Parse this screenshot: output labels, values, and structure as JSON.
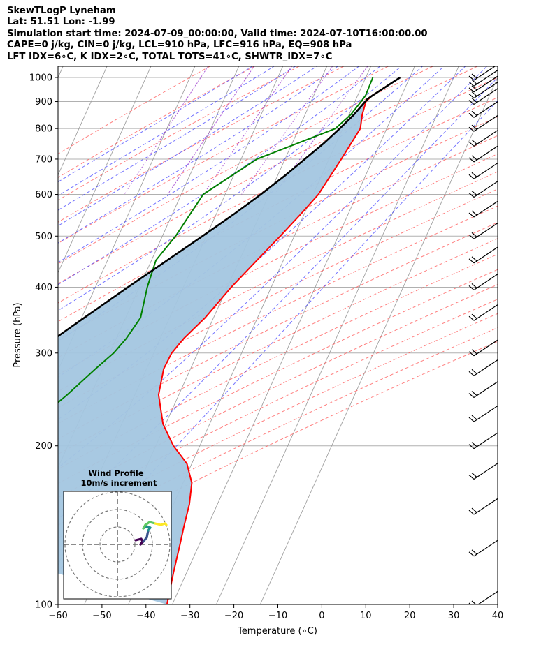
{
  "header": {
    "line1": "SkewTLogP Lyneham",
    "line2": "Lat: 51.51   Lon: -1.99",
    "line3": "Simulation start time: 2024-07-09_00:00:00, Valid time: 2024-07-10T16:00:00.00",
    "line4": "CAPE=0 j/kg, CIN=0 j/kg, LCL=910 hPa, LFC=916 hPa, EQ=908 hPa",
    "line5": "LFT IDX=6∘C, K IDX=2∘C, TOTAL TOTS=41∘C, SHWTR_IDX=7∘C"
  },
  "chart_data": {
    "type": "line",
    "xlabel": "Temperature (∘C)",
    "ylabel": "Pressure (hPa)",
    "xlim": [
      -60,
      40
    ],
    "ylim": [
      1050,
      100
    ],
    "y_scale": "log",
    "skew": true,
    "grid": true,
    "x_ticks": [
      -60,
      -50,
      -40,
      -30,
      -20,
      -10,
      0,
      10,
      20,
      30,
      40
    ],
    "y_ticks": [
      1000,
      900,
      800,
      700,
      600,
      500,
      400,
      300,
      200,
      100
    ],
    "colors": {
      "temperature": "#ff0000",
      "dewpoint": "#008000",
      "parcel": "#000000",
      "cape_fill": "#a3c6e0",
      "isotherms": "#a0a0a0",
      "dry_adiabats": "#ff5555",
      "moist_adiabats": "#4444ff",
      "mixing_ratio": "#9933cc"
    },
    "series": [
      {
        "key": "temperature",
        "x": [
          17.8,
          13.3,
          12.5,
          13.0,
          14.0,
          12.8,
          11.2,
          9.2,
          6.8,
          4.0,
          0.9,
          -1.9,
          -4.6,
          -5.9,
          -6.1,
          -4.6,
          -0.6,
          4.0,
          8.9,
          12.0,
          13.6,
          14.7,
          15.6,
          17.0,
          18.8
        ],
        "y": [
          1000,
          925,
          900,
          850,
          800,
          700,
          600,
          550,
          500,
          450,
          400,
          350,
          320,
          300,
          280,
          250,
          220,
          200,
          185,
          170,
          155,
          140,
          130,
          115,
          100
        ]
      },
      {
        "key": "dewpoint",
        "x": [
          11.6,
          11.8,
          11.4,
          10.4,
          8.3,
          -6.4,
          -15.0,
          -17.0,
          -19.0,
          -18.2,
          -16.6,
          -17.7,
          -19.1,
          -21.6,
          -25.4,
          -29.5,
          -34.8,
          -37.7,
          -42.5,
          -47.2,
          -53.9,
          -59.0
        ],
        "y": [
          1000,
          925,
          900,
          850,
          800,
          700,
          600,
          500,
          450,
          400,
          350,
          320,
          300,
          280,
          250,
          225,
          205,
          187,
          170,
          150,
          120,
          100
        ]
      },
      {
        "key": "parcel",
        "x": [
          17.8,
          13.4,
          12.6,
          11.1,
          9.3,
          7.2,
          4.5,
          1.6,
          -1.9,
          -6.0,
          -10.9,
          -16.4,
          -22.6,
          -29.4,
          -37.2,
          -45.6,
          -54.6,
          -65.0
        ],
        "y": [
          1000,
          925,
          910,
          850,
          800,
          750,
          700,
          650,
          600,
          550,
          500,
          450,
          400,
          350,
          300,
          250,
          200,
          150
        ]
      }
    ],
    "wind_barbs": [
      {
        "pressure": 100,
        "kind": "flag_feathers"
      },
      {
        "pressure": 125,
        "kind": "feathers"
      },
      {
        "pressure": 150,
        "kind": "feathers"
      },
      {
        "pressure": 175,
        "kind": "feathers"
      },
      {
        "pressure": 200,
        "kind": "feathers"
      },
      {
        "pressure": 225,
        "kind": "feathers"
      },
      {
        "pressure": 250,
        "kind": "feathers"
      },
      {
        "pressure": 275,
        "kind": "feathers"
      },
      {
        "pressure": 300,
        "kind": "feathers"
      },
      {
        "pressure": 350,
        "kind": "feathers"
      },
      {
        "pressure": 400,
        "kind": "feathers"
      },
      {
        "pressure": 450,
        "kind": "feathers"
      },
      {
        "pressure": 500,
        "kind": "feathers"
      },
      {
        "pressure": 550,
        "kind": "feathers"
      },
      {
        "pressure": 600,
        "kind": "feathers"
      },
      {
        "pressure": 650,
        "kind": "feathers"
      },
      {
        "pressure": 700,
        "kind": "feathers"
      },
      {
        "pressure": 750,
        "kind": "feathers"
      },
      {
        "pressure": 800,
        "kind": "feathers"
      },
      {
        "pressure": 850,
        "kind": "feathers"
      },
      {
        "pressure": 900,
        "kind": "feathers"
      },
      {
        "pressure": 925,
        "kind": "feathers"
      },
      {
        "pressure": 950,
        "kind": "feathers"
      },
      {
        "pressure": 975,
        "kind": "feathers"
      },
      {
        "pressure": 1000,
        "kind": "feathers"
      }
    ],
    "inset": {
      "title": "Wind Profile",
      "subtitle": "10m/s increment",
      "rings": 3,
      "hodograph_colors": [
        "#440154",
        "#3b528b",
        "#21918c",
        "#5ec962",
        "#fde725"
      ]
    }
  }
}
